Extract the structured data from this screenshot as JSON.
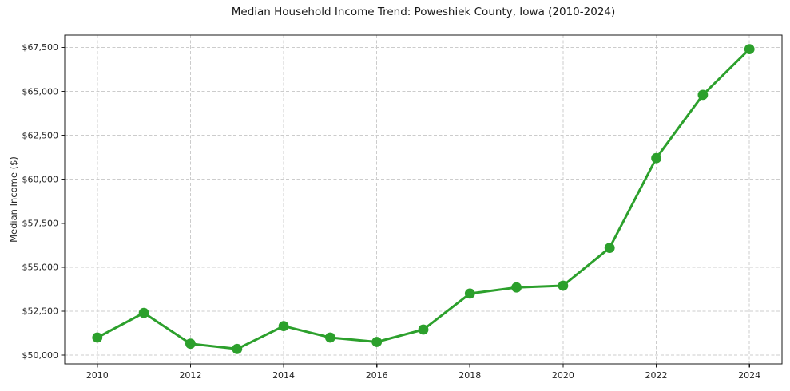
{
  "chart_data": {
    "type": "line",
    "title": "Median Household Income Trend: Poweshiek County, Iowa (2010-2024)",
    "ylabel": "Median Income ($)",
    "xlabel": "",
    "series_name": "Median Household Income",
    "x": [
      2010,
      2011,
      2012,
      2013,
      2014,
      2015,
      2016,
      2017,
      2018,
      2019,
      2020,
      2021,
      2022,
      2023,
      2024
    ],
    "values": [
      51000,
      52400,
      50650,
      50350,
      51650,
      51000,
      50750,
      51450,
      53500,
      53850,
      53950,
      56100,
      61200,
      64800,
      67400
    ],
    "xticks": {
      "values": [
        2010,
        2012,
        2014,
        2016,
        2018,
        2020,
        2022,
        2024
      ],
      "labels": [
        "2010",
        "2012",
        "2014",
        "2016",
        "2018",
        "2020",
        "2022",
        "2024"
      ]
    },
    "yticks": {
      "values": [
        50000,
        52500,
        55000,
        57500,
        60000,
        62500,
        65000,
        67500
      ],
      "labels": [
        "$50,000",
        "$52,500",
        "$55,000",
        "$57,500",
        "$60,000",
        "$62,500",
        "$65,000",
        "$67,500"
      ]
    },
    "xlim": [
      2009.3,
      2024.7
    ],
    "ylim": [
      49500,
      68200
    ],
    "grid": true,
    "grid_style": "dashed",
    "legend": "none",
    "marker": "circle",
    "colors": {
      "line": "#2ca02c",
      "marker": "#2ca02c",
      "grid": "#cccccc",
      "spine": "#1a1a1a",
      "tick_label": "#262626",
      "title": "#1a1a1a",
      "background": "#ffffff"
    }
  }
}
